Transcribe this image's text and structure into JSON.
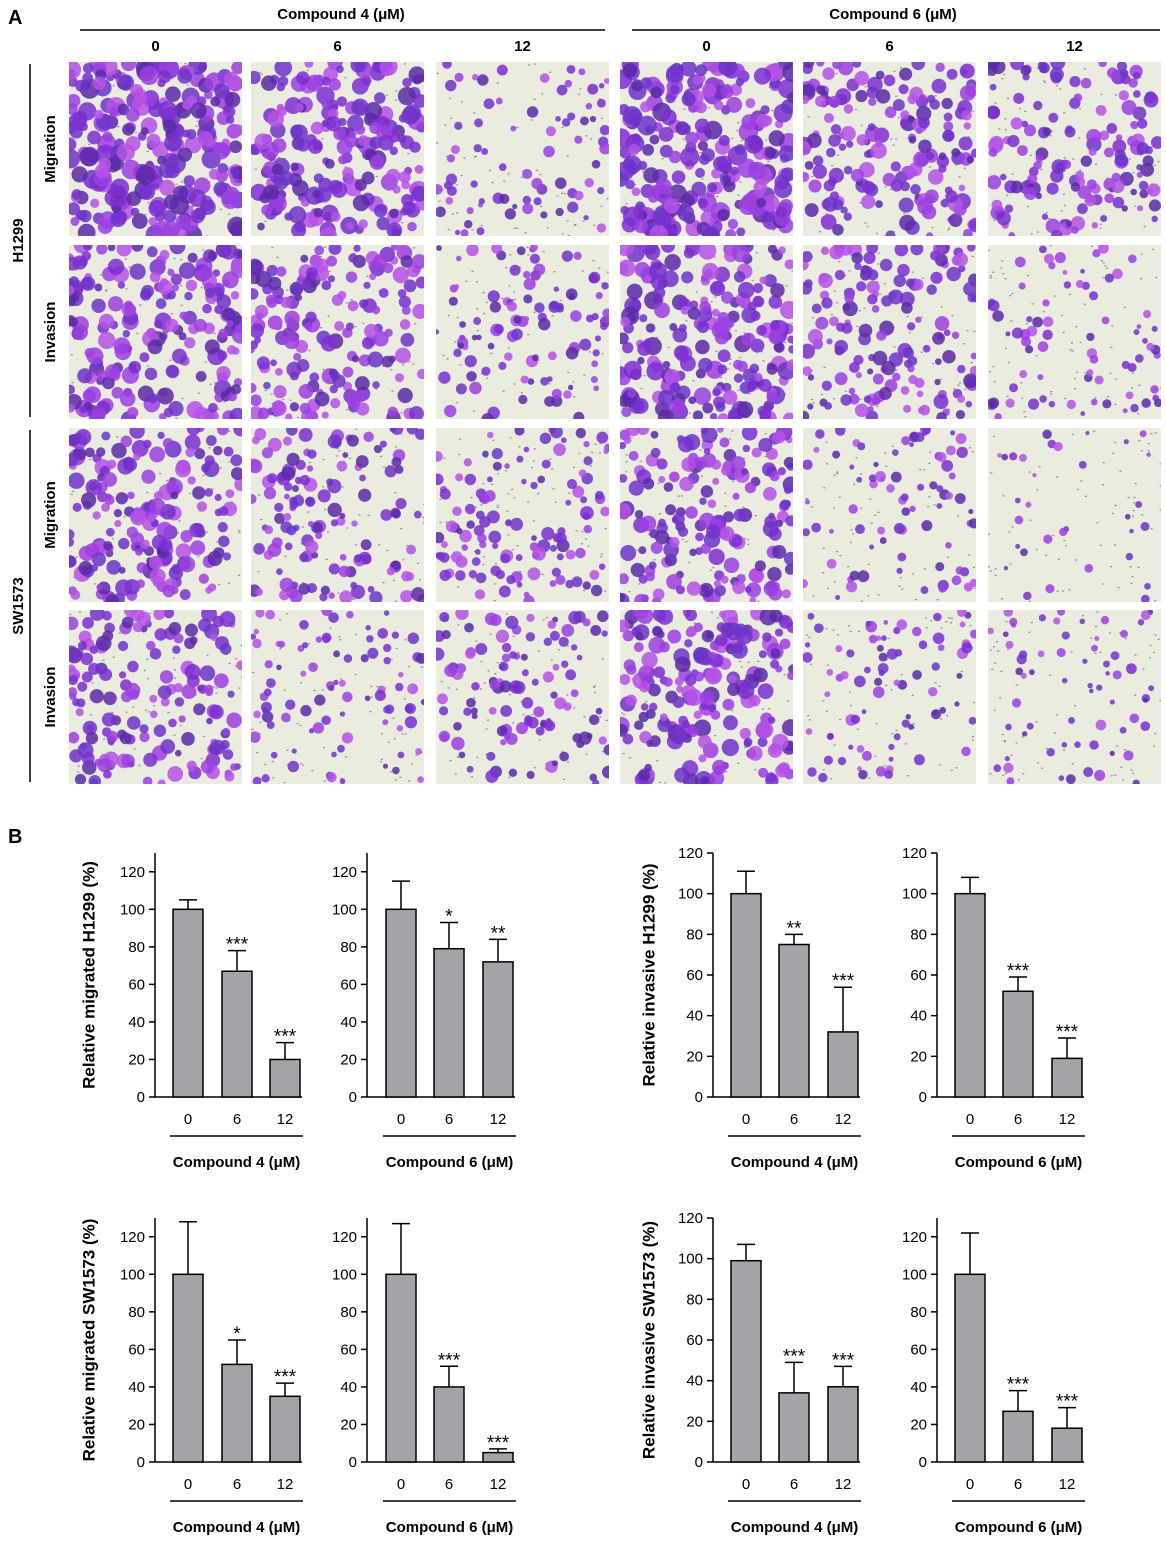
{
  "panel_labels": {
    "a": "A",
    "b": "B"
  },
  "panel_a": {
    "groups": [
      {
        "label": "Compound 4 (μM)",
        "doses": [
          "0",
          "6",
          "12"
        ]
      },
      {
        "label": "Compound 6 (μM)",
        "doses": [
          "0",
          "6",
          "12"
        ]
      }
    ],
    "cell_lines": [
      {
        "name": "H1299",
        "assays": [
          "Migration",
          "Invasion"
        ]
      },
      {
        "name": "SW1573",
        "assays": [
          "Migration",
          "Invasion"
        ]
      }
    ],
    "stain_color": "#7a2fd0",
    "background_color": "#e9ecdf",
    "cell_coverage": [
      [
        0.93,
        0.78,
        0.22,
        0.9,
        0.62,
        0.52
      ],
      [
        0.72,
        0.62,
        0.32,
        0.78,
        0.52,
        0.22
      ],
      [
        0.66,
        0.45,
        0.4,
        0.62,
        0.24,
        0.05
      ],
      [
        0.58,
        0.28,
        0.38,
        0.72,
        0.24,
        0.18
      ]
    ]
  },
  "chart_data": [
    {
      "type": "bar",
      "categories": [
        "0",
        "6",
        "12"
      ],
      "values": [
        100,
        67,
        20
      ],
      "errors": [
        5,
        11,
        9
      ],
      "significance": [
        "",
        "***",
        "***"
      ],
      "ylabel": "Relative migrated H1299 (%)",
      "xlabel": "Compound 4 (μM)",
      "ylim": [
        0,
        130
      ],
      "yticks": [
        0,
        20,
        40,
        60,
        80,
        100,
        120
      ]
    },
    {
      "type": "bar",
      "categories": [
        "0",
        "6",
        "12"
      ],
      "values": [
        100,
        79,
        72
      ],
      "errors": [
        15,
        14,
        12
      ],
      "significance": [
        "",
        "*",
        "**"
      ],
      "ylabel": "",
      "xlabel": "Compound 6 (μM)",
      "ylim": [
        0,
        130
      ],
      "yticks": [
        0,
        20,
        40,
        60,
        80,
        100,
        120
      ]
    },
    {
      "type": "bar",
      "categories": [
        "0",
        "6",
        "12"
      ],
      "values": [
        100,
        75,
        32
      ],
      "errors": [
        11,
        5,
        22
      ],
      "significance": [
        "",
        "**",
        "***"
      ],
      "ylabel": "Relative invasive H1299 (%)",
      "xlabel": "Compound 4 (μM)",
      "ylim": [
        0,
        120
      ],
      "yticks": [
        0,
        20,
        40,
        60,
        80,
        100,
        120
      ]
    },
    {
      "type": "bar",
      "categories": [
        "0",
        "6",
        "12"
      ],
      "values": [
        100,
        52,
        19
      ],
      "errors": [
        8,
        7,
        10
      ],
      "significance": [
        "",
        "***",
        "***"
      ],
      "ylabel": "",
      "xlabel": "Compound 6 (μM)",
      "ylim": [
        0,
        120
      ],
      "yticks": [
        0,
        20,
        40,
        60,
        80,
        100,
        120
      ]
    },
    {
      "type": "bar",
      "categories": [
        "0",
        "6",
        "12"
      ],
      "values": [
        100,
        52,
        35
      ],
      "errors": [
        28,
        13,
        7
      ],
      "significance": [
        "",
        "*",
        "***"
      ],
      "ylabel": "Relative migrated SW1573 (%)",
      "xlabel": "Compound 4 (μM)",
      "ylim": [
        0,
        130
      ],
      "yticks": [
        0,
        20,
        40,
        60,
        80,
        100,
        120
      ]
    },
    {
      "type": "bar",
      "categories": [
        "0",
        "6",
        "12"
      ],
      "values": [
        100,
        40,
        5
      ],
      "errors": [
        27,
        11,
        2
      ],
      "significance": [
        "",
        "***",
        "***"
      ],
      "ylabel": "",
      "xlabel": "Compound 6 (μM)",
      "ylim": [
        0,
        130
      ],
      "yticks": [
        0,
        20,
        40,
        60,
        80,
        100,
        120
      ]
    },
    {
      "type": "bar",
      "categories": [
        "0",
        "6",
        "12"
      ],
      "values": [
        99,
        34,
        37
      ],
      "errors": [
        8,
        15,
        10
      ],
      "significance": [
        "",
        "***",
        "***"
      ],
      "ylabel": "Relative invasive SW1573 (%)",
      "xlabel": "Compound 4 (μM)",
      "ylim": [
        0,
        120
      ],
      "yticks": [
        0,
        20,
        40,
        60,
        80,
        100,
        120
      ]
    },
    {
      "type": "bar",
      "categories": [
        "0",
        "6",
        "12"
      ],
      "values": [
        100,
        27,
        18
      ],
      "errors": [
        22,
        11,
        11
      ],
      "significance": [
        "",
        "***",
        "***"
      ],
      "ylabel": "",
      "xlabel": "Compound 6 (μM)",
      "ylim": [
        0,
        130
      ],
      "yticks": [
        0,
        20,
        40,
        60,
        80,
        100,
        120
      ]
    }
  ],
  "bar_color": "#a3a3a8"
}
